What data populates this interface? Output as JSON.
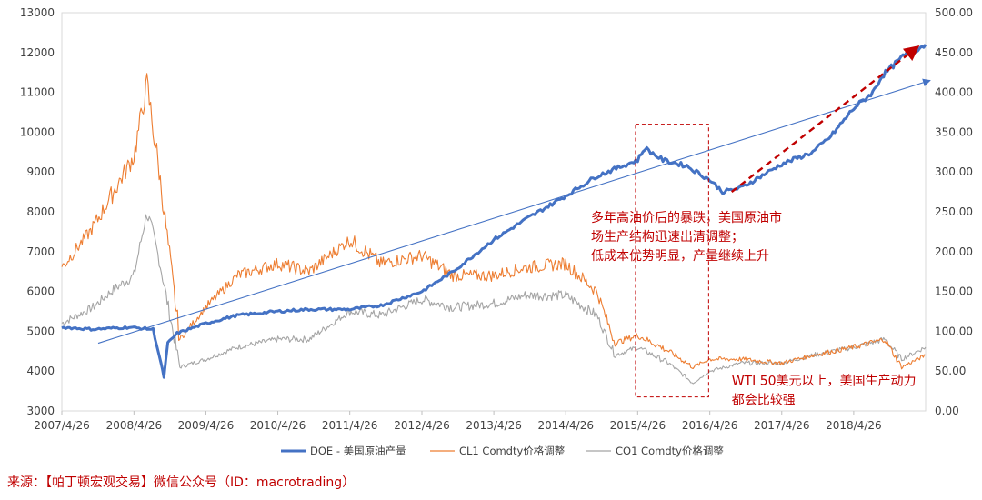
{
  "chart_data": {
    "type": "line",
    "title": "",
    "xlabel": "",
    "ylabel_left": "",
    "ylabel_right": "",
    "x_ticks": [
      "2007/4/26",
      "2008/4/26",
      "2009/4/26",
      "2010/4/26",
      "2011/4/26",
      "2012/4/26",
      "2013/4/26",
      "2014/4/26",
      "2015/4/26",
      "2016/4/26",
      "2017/4/26",
      "2018/4/26"
    ],
    "y_left": {
      "range": [
        3000,
        13000
      ],
      "ticks": [
        "3000",
        "4000",
        "5000",
        "6000",
        "7000",
        "8000",
        "9000",
        "10000",
        "11000",
        "12000",
        "13000"
      ]
    },
    "y_right": {
      "range": [
        0,
        500
      ],
      "ticks": [
        "0.00",
        "50.00",
        "100.00",
        "150.00",
        "200.00",
        "250.00",
        "300.00",
        "350.00",
        "400.00",
        "450.00",
        "500.00"
      ]
    },
    "grid": false,
    "legend_position": "bottom",
    "series": [
      {
        "name": "DOE - 美国原油产量",
        "axis": "left",
        "color": "#4472c4",
        "points": [
          [
            "2007-04-26",
            5100
          ],
          [
            "2007-10-01",
            5050
          ],
          [
            "2008-04-01",
            5100
          ],
          [
            "2008-08-01",
            5050
          ],
          [
            "2008-09-10",
            4200
          ],
          [
            "2008-09-25",
            3850
          ],
          [
            "2008-10-15",
            4700
          ],
          [
            "2008-12-01",
            4950
          ],
          [
            "2009-04-26",
            5200
          ],
          [
            "2009-10-01",
            5400
          ],
          [
            "2010-04-26",
            5500
          ],
          [
            "2010-10-01",
            5550
          ],
          [
            "2011-04-26",
            5550
          ],
          [
            "2011-10-01",
            5650
          ],
          [
            "2012-04-26",
            6000
          ],
          [
            "2012-10-01",
            6500
          ],
          [
            "2013-04-26",
            7300
          ],
          [
            "2013-10-01",
            7800
          ],
          [
            "2014-04-26",
            8400
          ],
          [
            "2014-10-01",
            8900
          ],
          [
            "2015-04-26",
            9300
          ],
          [
            "2015-06-01",
            9600
          ],
          [
            "2015-09-01",
            9300
          ],
          [
            "2016-01-01",
            9150
          ],
          [
            "2016-04-26",
            8800
          ],
          [
            "2016-07-01",
            8500
          ],
          [
            "2016-10-01",
            8600
          ],
          [
            "2017-04-26",
            9200
          ],
          [
            "2017-10-01",
            9500
          ],
          [
            "2018-01-01",
            9900
          ],
          [
            "2018-04-26",
            10600
          ],
          [
            "2018-08-01",
            11000
          ],
          [
            "2018-09-15",
            11400
          ],
          [
            "2019-01-01",
            11900
          ],
          [
            "2019-04-26",
            12200
          ]
        ]
      },
      {
        "name": "CL1 Comdty价格调整",
        "axis": "right",
        "color": "#ed7d31",
        "points": [
          [
            "2007-04-26",
            180
          ],
          [
            "2007-10-01",
            230
          ],
          [
            "2008-01-01",
            270
          ],
          [
            "2008-04-26",
            320
          ],
          [
            "2008-07-01",
            410
          ],
          [
            "2008-09-01",
            300
          ],
          [
            "2008-12-15",
            90
          ],
          [
            "2009-04-26",
            130
          ],
          [
            "2009-10-01",
            170
          ],
          [
            "2010-04-26",
            185
          ],
          [
            "2010-10-01",
            175
          ],
          [
            "2011-04-26",
            215
          ],
          [
            "2011-10-01",
            185
          ],
          [
            "2012-04-26",
            195
          ],
          [
            "2012-10-01",
            170
          ],
          [
            "2013-04-26",
            170
          ],
          [
            "2013-10-01",
            180
          ],
          [
            "2014-04-26",
            185
          ],
          [
            "2014-10-01",
            150
          ],
          [
            "2015-01-01",
            85
          ],
          [
            "2015-04-26",
            95
          ],
          [
            "2015-10-01",
            75
          ],
          [
            "2016-02-01",
            55
          ],
          [
            "2016-04-26",
            65
          ],
          [
            "2016-10-01",
            65
          ],
          [
            "2017-04-26",
            60
          ],
          [
            "2017-10-01",
            70
          ],
          [
            "2018-04-26",
            80
          ],
          [
            "2018-10-01",
            90
          ],
          [
            "2018-12-25",
            55
          ],
          [
            "2019-04-26",
            70
          ]
        ]
      },
      {
        "name": "CO1 Comdty价格调整",
        "axis": "right",
        "color": "#a5a5a5",
        "points": [
          [
            "2007-04-26",
            110
          ],
          [
            "2007-10-01",
            130
          ],
          [
            "2008-01-01",
            150
          ],
          [
            "2008-04-26",
            170
          ],
          [
            "2008-07-01",
            250
          ],
          [
            "2008-09-01",
            190
          ],
          [
            "2008-12-15",
            55
          ],
          [
            "2009-04-26",
            65
          ],
          [
            "2009-10-01",
            80
          ],
          [
            "2010-04-26",
            90
          ],
          [
            "2010-10-01",
            90
          ],
          [
            "2011-04-26",
            125
          ],
          [
            "2011-10-01",
            120
          ],
          [
            "2012-04-26",
            140
          ],
          [
            "2012-10-01",
            130
          ],
          [
            "2013-04-26",
            135
          ],
          [
            "2013-10-01",
            145
          ],
          [
            "2014-04-26",
            145
          ],
          [
            "2014-10-01",
            120
          ],
          [
            "2015-01-01",
            70
          ],
          [
            "2015-04-26",
            80
          ],
          [
            "2015-10-01",
            60
          ],
          [
            "2016-02-01",
            35
          ],
          [
            "2016-04-26",
            50
          ],
          [
            "2016-10-01",
            60
          ],
          [
            "2017-04-26",
            60
          ],
          [
            "2017-10-01",
            70
          ],
          [
            "2018-04-26",
            80
          ],
          [
            "2018-10-01",
            90
          ],
          [
            "2018-12-25",
            65
          ],
          [
            "2019-04-26",
            80
          ]
        ]
      }
    ],
    "trend_line": {
      "color": "#4472c4",
      "from": [
        "2007-04-26",
        4700
      ],
      "to": [
        "2019-04-26",
        11300
      ]
    },
    "dashed_arrow": {
      "color": "#c00000",
      "from": [
        "2016-08-15",
        8500
      ],
      "to": [
        "2019-04-26",
        12200
      ]
    },
    "highlight_box": {
      "x": [
        "2015-04-15",
        "2016-04-20"
      ],
      "y": [
        3350,
        10200
      ]
    },
    "annotations": [
      {
        "lines": [
          "多年高油价后的暴跌，美国原油市",
          "场生产结构迅速出清调整；",
          "低成本优势明显，产量继续上升"
        ],
        "at": [
          "2014-09-01",
          7750
        ]
      },
      {
        "lines": [
          "WTI 50美元以上，美国生产动力",
          "都会比较强"
        ],
        "at": [
          "2016-08-15",
          3650
        ]
      }
    ]
  },
  "source_text": "来源：【帕丁顿宏观交易】微信公众号（ID：macrotrading）"
}
